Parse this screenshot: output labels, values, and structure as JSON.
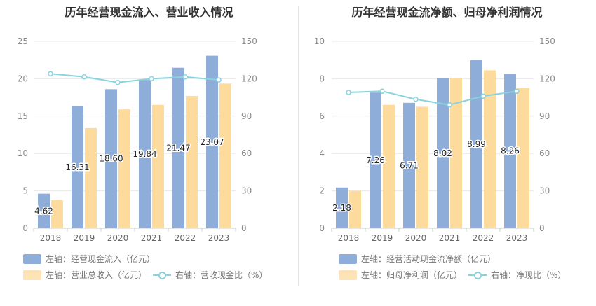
{
  "colors": {
    "bar1": "#8eadd9",
    "bar2": "#fddb9c",
    "line": "#88d3dd",
    "grid": "#e8e8e8",
    "axis": "#cccccc"
  },
  "chart_data": [
    {
      "type": "bar",
      "title": "历年经营现金流入、营业收入情况",
      "categories": [
        "2018",
        "2019",
        "2020",
        "2021",
        "2022",
        "2023"
      ],
      "y_left": {
        "ticks": [
          "0",
          "5",
          "10",
          "15",
          "20",
          "25"
        ],
        "ylim": [
          0,
          25
        ]
      },
      "y_right": {
        "ticks": [
          "0",
          "30",
          "60",
          "90",
          "120",
          "150"
        ],
        "ylim": [
          0,
          150
        ]
      },
      "series": [
        {
          "name": "左轴：经营现金流入（亿元）",
          "axis": "left",
          "kind": "bar",
          "values": [
            4.62,
            16.31,
            18.6,
            19.84,
            21.47,
            23.07
          ],
          "labels": [
            "4.62",
            "16.31",
            "18.60",
            "19.84",
            "21.47",
            "23.07"
          ]
        },
        {
          "name": "左轴：营业总收入（亿元）",
          "axis": "left",
          "kind": "bar",
          "values": [
            3.75,
            13.4,
            15.9,
            16.5,
            17.7,
            19.35
          ]
        },
        {
          "name": "右轴：营收现金比（%）",
          "axis": "right",
          "kind": "line",
          "values": [
            124,
            121.5,
            117,
            120,
            121.5,
            119
          ]
        }
      ]
    },
    {
      "type": "bar",
      "title": "历年经营现金流净额、归母净利润情况",
      "categories": [
        "2018",
        "2019",
        "2020",
        "2021",
        "2022",
        "2023"
      ],
      "y_left": {
        "ticks": [
          "0",
          "2",
          "4",
          "6",
          "8",
          "10"
        ],
        "ylim": [
          0,
          10
        ]
      },
      "y_right": {
        "ticks": [
          "0",
          "30",
          "60",
          "90",
          "120",
          "150"
        ],
        "ylim": [
          0,
          150
        ]
      },
      "series": [
        {
          "name": "左轴：经营活动现金流净额（亿元）",
          "axis": "left",
          "kind": "bar",
          "values": [
            2.18,
            7.26,
            6.71,
            8.02,
            8.99,
            8.26
          ],
          "labels": [
            "2.18",
            "7.26",
            "6.71",
            "8.02",
            "8.99",
            "8.26"
          ]
        },
        {
          "name": "左轴：归母净利润（亿元）",
          "axis": "left",
          "kind": "bar",
          "values": [
            2.0,
            6.6,
            6.5,
            8.05,
            8.45,
            7.5
          ]
        },
        {
          "name": "右轴：净现比（%）",
          "axis": "right",
          "kind": "line",
          "values": [
            109,
            110,
            103.5,
            99,
            106,
            110
          ]
        }
      ]
    }
  ]
}
